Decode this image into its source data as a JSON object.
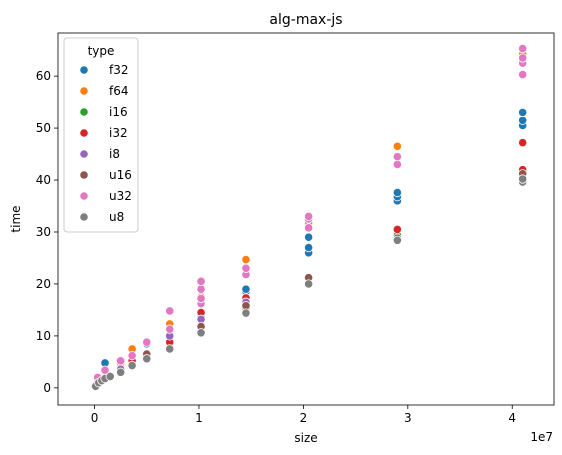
{
  "chart_data": {
    "type": "scatter",
    "title": "alg-max-js",
    "xlabel": "size",
    "ylabel": "time",
    "x_offset_label": "1e7",
    "xlim": [
      -3500000,
      44000000
    ],
    "ylim": [
      -3.3,
      68.3
    ],
    "xticks": [
      0,
      10000000,
      20000000,
      30000000,
      40000000
    ],
    "xtick_labels": [
      "0",
      "1",
      "2",
      "3",
      "4"
    ],
    "yticks": [
      0,
      10,
      20,
      30,
      40,
      50,
      60
    ],
    "ytick_labels": [
      "0",
      "10",
      "20",
      "30",
      "40",
      "50",
      "60"
    ],
    "grid": false,
    "legend": {
      "title": "type",
      "placement": "top-left"
    },
    "series": [
      {
        "name": "f32",
        "color": "#1f77b4",
        "points": [
          [
            1000000,
            4.8
          ],
          [
            5000000,
            8.5
          ],
          [
            7200000,
            9.8
          ],
          [
            10200000,
            13.7
          ],
          [
            10200000,
            14.6
          ],
          [
            14500000,
            18.5
          ],
          [
            14500000,
            19.0
          ],
          [
            20500000,
            26.0
          ],
          [
            20500000,
            27.0
          ],
          [
            20500000,
            29.0
          ],
          [
            29000000,
            36.0
          ],
          [
            29000000,
            36.8
          ],
          [
            29000000,
            37.6
          ],
          [
            41000000,
            50.5
          ],
          [
            41000000,
            51.5
          ],
          [
            41000000,
            53.0
          ]
        ]
      },
      {
        "name": "f64",
        "color": "#ff7f0e",
        "points": [
          [
            1000000,
            3.2
          ],
          [
            2500000,
            4.7
          ],
          [
            3600000,
            7.5
          ],
          [
            7200000,
            12.3
          ],
          [
            10200000,
            17.5
          ],
          [
            14500000,
            24.7
          ],
          [
            20500000,
            31.8
          ],
          [
            29000000,
            46.5
          ],
          [
            41000000,
            64.2
          ]
        ]
      },
      {
        "name": "i16",
        "color": "#2ca02c",
        "points": [
          [
            100000,
            0.4
          ],
          [
            1000000,
            2.3
          ],
          [
            5000000,
            6.2
          ],
          [
            14500000,
            15.3
          ],
          [
            29000000,
            29.4
          ]
        ]
      },
      {
        "name": "i32",
        "color": "#d62728",
        "points": [
          [
            1000000,
            2.0
          ],
          [
            3600000,
            5.2
          ],
          [
            7200000,
            8.8
          ],
          [
            10200000,
            14.5
          ],
          [
            14500000,
            17.3
          ],
          [
            20500000,
            21.0
          ],
          [
            29000000,
            30.5
          ],
          [
            41000000,
            42.0
          ],
          [
            41000000,
            47.2
          ]
        ]
      },
      {
        "name": "i8",
        "color": "#9467bd",
        "points": [
          [
            300000,
            1.2
          ],
          [
            2500000,
            3.6
          ],
          [
            7200000,
            10.0
          ],
          [
            10200000,
            13.2
          ],
          [
            14500000,
            16.5
          ]
        ]
      },
      {
        "name": "u16",
        "color": "#8c564b",
        "points": [
          [
            400000,
            1.5
          ],
          [
            5000000,
            6.5
          ],
          [
            10200000,
            11.8
          ],
          [
            14500000,
            15.8
          ],
          [
            20500000,
            21.2
          ],
          [
            29000000,
            28.8
          ],
          [
            41000000,
            41.2
          ]
        ]
      },
      {
        "name": "u32",
        "color": "#e377c2",
        "points": [
          [
            300000,
            2.0
          ],
          [
            1000000,
            3.4
          ],
          [
            2500000,
            5.2
          ],
          [
            3600000,
            6.2
          ],
          [
            5000000,
            8.8
          ],
          [
            7200000,
            11.3
          ],
          [
            7200000,
            14.8
          ],
          [
            10200000,
            16.2
          ],
          [
            10200000,
            17.2
          ],
          [
            10200000,
            19.0
          ],
          [
            10200000,
            20.5
          ],
          [
            14500000,
            21.8
          ],
          [
            14500000,
            23.0
          ],
          [
            20500000,
            30.8
          ],
          [
            20500000,
            32.5
          ],
          [
            20500000,
            33.0
          ],
          [
            29000000,
            43.0
          ],
          [
            29000000,
            44.5
          ],
          [
            41000000,
            60.3
          ],
          [
            41000000,
            62.5
          ],
          [
            41000000,
            63.5
          ],
          [
            41000000,
            65.3
          ]
        ]
      },
      {
        "name": "u8",
        "color": "#7f7f7f",
        "points": [
          [
            100000,
            0.3
          ],
          [
            400000,
            1.0
          ],
          [
            700000,
            1.4
          ],
          [
            1000000,
            1.8
          ],
          [
            1500000,
            2.2
          ],
          [
            2500000,
            3.0
          ],
          [
            3600000,
            4.3
          ],
          [
            5000000,
            5.6
          ],
          [
            7200000,
            7.5
          ],
          [
            10200000,
            10.6
          ],
          [
            14500000,
            14.4
          ],
          [
            20500000,
            20.0
          ],
          [
            29000000,
            28.4
          ],
          [
            41000000,
            39.6
          ],
          [
            41000000,
            40.2
          ]
        ]
      }
    ]
  }
}
